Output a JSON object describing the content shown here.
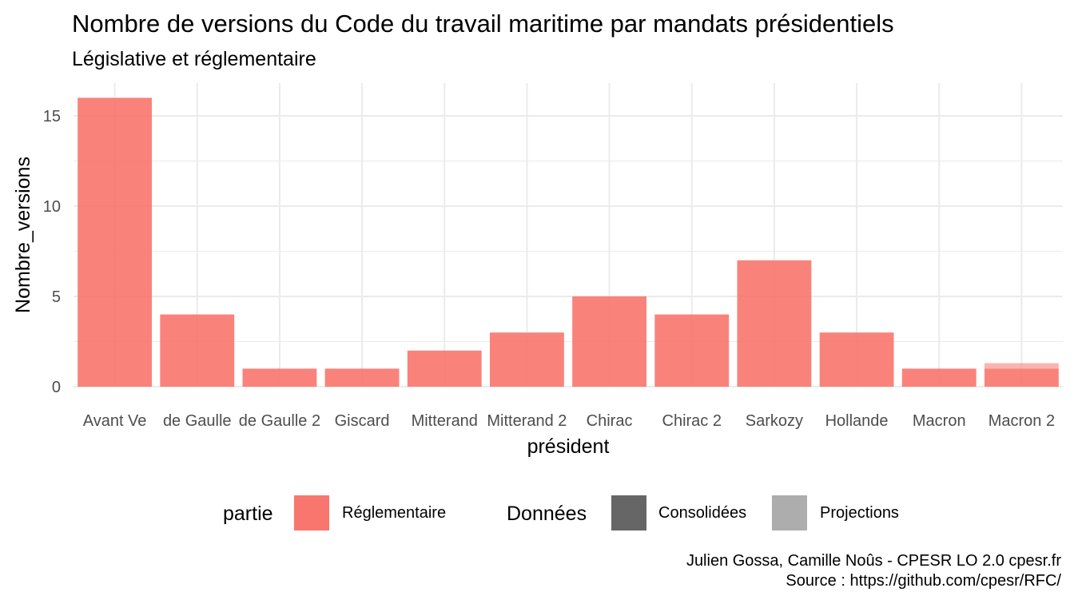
{
  "title": "Nombre de versions du Code du travail maritime par mandats présidentiels",
  "subtitle": "Législative et réglementaire",
  "caption_line1": "Julien Gossa, Camille Noûs - CPESR LO 2.0 cpesr.fr",
  "caption_line2": "Source : https://github.com/cpesr/RFC/",
  "colors": {
    "reglementaire": "#F8766D",
    "consolidees": "#666666",
    "projections": "#ADADAD",
    "grid": "#EBEBEB"
  },
  "legend": {
    "partie_title": "partie",
    "partie_items": [
      "Réglementaire"
    ],
    "donnees_title": "Données",
    "donnees_items": [
      "Consolidées",
      "Projections"
    ]
  },
  "chart_data": {
    "type": "bar",
    "xlabel": "président",
    "ylabel": "Nombre_versions",
    "ylim": [
      0,
      16.8
    ],
    "yticks": [
      0,
      5,
      10,
      15
    ],
    "categories": [
      "Avant Ve",
      "de Gaulle",
      "de Gaulle 2",
      "Giscard",
      "Mitterand",
      "Mitterand 2",
      "Chirac",
      "Chirac 2",
      "Sarkozy",
      "Hollande",
      "Macron",
      "Macron 2"
    ],
    "series": [
      {
        "name": "Consolidées",
        "values": [
          16,
          4,
          1,
          1,
          2,
          3,
          5,
          4,
          7,
          3,
          1,
          1
        ]
      },
      {
        "name": "Projections",
        "values": [
          0,
          0,
          0,
          0,
          0,
          0,
          0,
          0,
          0,
          0,
          0,
          0.3
        ]
      }
    ],
    "stacked": true,
    "grid": true,
    "legend_position": "bottom"
  }
}
